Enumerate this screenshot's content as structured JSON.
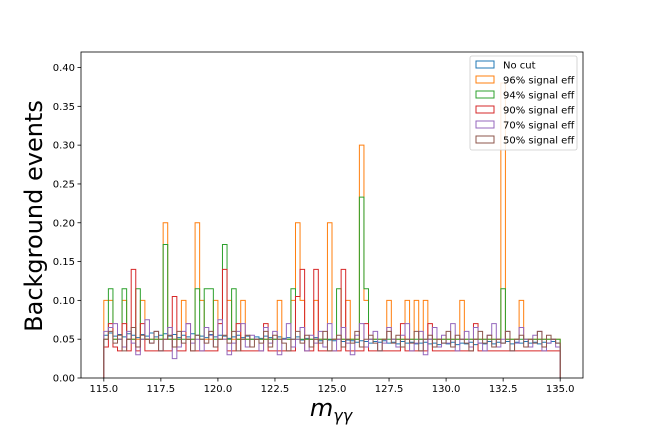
{
  "chart_data": {
    "type": "histogram",
    "xlabel": "mγγ",
    "xlabel_main": "m",
    "xlabel_sub": "γγ",
    "ylabel": "Background events",
    "xlim": [
      114.0,
      136.0
    ],
    "ylim": [
      0.0,
      0.42
    ],
    "xticks": [
      115.0,
      117.5,
      120.0,
      122.5,
      125.0,
      127.5,
      130.0,
      132.5,
      135.0
    ],
    "xtick_labels": [
      "115.0",
      "117.5",
      "120.0",
      "122.5",
      "125.0",
      "127.5",
      "130.0",
      "132.5",
      "135.0"
    ],
    "yticks": [
      0.0,
      0.05,
      0.1,
      0.15,
      0.2,
      0.25,
      0.3,
      0.35,
      0.4
    ],
    "ytick_labels": [
      "0.00",
      "0.05",
      "0.10",
      "0.15",
      "0.20",
      "0.25",
      "0.30",
      "0.35",
      "0.40"
    ],
    "bins": {
      "start": 115.0,
      "end": 135.0,
      "count": 100,
      "width": 0.2
    },
    "grid": false,
    "legend_position": "top-right",
    "series": [
      {
        "name": "No cut",
        "color": "#1f77b4",
        "values": [
          0.055,
          0.058,
          0.054,
          0.056,
          0.053,
          0.057,
          0.055,
          0.052,
          0.056,
          0.054,
          0.058,
          0.053,
          0.055,
          0.057,
          0.054,
          0.056,
          0.052,
          0.055,
          0.053,
          0.057,
          0.055,
          0.054,
          0.052,
          0.056,
          0.053,
          0.055,
          0.054,
          0.051,
          0.053,
          0.055,
          0.052,
          0.054,
          0.05,
          0.053,
          0.051,
          0.054,
          0.052,
          0.05,
          0.053,
          0.051,
          0.052,
          0.05,
          0.053,
          0.049,
          0.051,
          0.05,
          0.052,
          0.048,
          0.05,
          0.049,
          0.048,
          0.05,
          0.047,
          0.049,
          0.048,
          0.046,
          0.048,
          0.047,
          0.045,
          0.047,
          0.046,
          0.048,
          0.045,
          0.046,
          0.044,
          0.047,
          0.045,
          0.046,
          0.044,
          0.045,
          0.046,
          0.044,
          0.045,
          0.043,
          0.045,
          0.044,
          0.046,
          0.043,
          0.045,
          0.044,
          0.046,
          0.043,
          0.045,
          0.044,
          0.047,
          0.044,
          0.046,
          0.045,
          0.047,
          0.044,
          0.046,
          0.045,
          0.047,
          0.045,
          0.046,
          0.044,
          0.046,
          0.045,
          0.047,
          0.045
        ]
      },
      {
        "name": "96% signal eff",
        "color": "#ff7f0e",
        "values": [
          0.1,
          0.1,
          0.05,
          0.05,
          0.1,
          0.05,
          0.05,
          0.05,
          0.1,
          0.05,
          0.05,
          0.05,
          0.05,
          0.2,
          0.05,
          0.05,
          0.05,
          0.1,
          0.05,
          0.05,
          0.2,
          0.1,
          0.05,
          0.05,
          0.1,
          0.05,
          0.05,
          0.1,
          0.05,
          0.05,
          0.1,
          0.05,
          0.05,
          0.05,
          0.05,
          0.05,
          0.05,
          0.05,
          0.1,
          0.05,
          0.05,
          0.1,
          0.2,
          0.1,
          0.05,
          0.05,
          0.1,
          0.05,
          0.05,
          0.2,
          0.05,
          0.05,
          0.05,
          0.1,
          0.05,
          0.05,
          0.3,
          0.1,
          0.05,
          0.05,
          0.05,
          0.05,
          0.1,
          0.05,
          0.05,
          0.05,
          0.1,
          0.05,
          0.1,
          0.05,
          0.1,
          0.05,
          0.05,
          0.05,
          0.05,
          0.05,
          0.05,
          0.05,
          0.1,
          0.05,
          0.05,
          0.05,
          0.05,
          0.05,
          0.05,
          0.05,
          0.05,
          0.38,
          0.05,
          0.05,
          0.05,
          0.1,
          0.05,
          0.05,
          0.05,
          0.05,
          0.05,
          0.05,
          0.05,
          0.05
        ]
      },
      {
        "name": "94% signal eff",
        "color": "#2ca02c",
        "values": [
          0.05,
          0.115,
          0.05,
          0.05,
          0.115,
          0.05,
          0.05,
          0.115,
          0.05,
          0.05,
          0.05,
          0.05,
          0.05,
          0.172,
          0.05,
          0.05,
          0.05,
          0.05,
          0.05,
          0.05,
          0.115,
          0.05,
          0.115,
          0.115,
          0.05,
          0.05,
          0.172,
          0.05,
          0.115,
          0.05,
          0.05,
          0.05,
          0.05,
          0.05,
          0.05,
          0.05,
          0.05,
          0.05,
          0.05,
          0.05,
          0.05,
          0.115,
          0.05,
          0.05,
          0.05,
          0.05,
          0.05,
          0.05,
          0.05,
          0.05,
          0.05,
          0.115,
          0.05,
          0.05,
          0.05,
          0.05,
          0.233,
          0.115,
          0.05,
          0.05,
          0.05,
          0.05,
          0.05,
          0.05,
          0.05,
          0.05,
          0.05,
          0.05,
          0.05,
          0.05,
          0.05,
          0.05,
          0.05,
          0.05,
          0.05,
          0.05,
          0.05,
          0.05,
          0.05,
          0.05,
          0.05,
          0.05,
          0.05,
          0.05,
          0.05,
          0.05,
          0.05,
          0.115,
          0.05,
          0.05,
          0.05,
          0.05,
          0.05,
          0.05,
          0.05,
          0.05,
          0.05,
          0.05,
          0.05,
          0.05
        ]
      },
      {
        "name": "90% signal eff",
        "color": "#d62728",
        "values": [
          0.04,
          0.07,
          0.04,
          0.035,
          0.07,
          0.035,
          0.14,
          0.035,
          0.07,
          0.035,
          0.035,
          0.035,
          0.035,
          0.035,
          0.035,
          0.105,
          0.035,
          0.035,
          0.07,
          0.035,
          0.035,
          0.035,
          0.035,
          0.035,
          0.035,
          0.07,
          0.14,
          0.035,
          0.035,
          0.07,
          0.035,
          0.035,
          0.035,
          0.035,
          0.035,
          0.07,
          0.035,
          0.035,
          0.035,
          0.035,
          0.035,
          0.035,
          0.105,
          0.14,
          0.035,
          0.035,
          0.14,
          0.035,
          0.035,
          0.035,
          0.035,
          0.035,
          0.14,
          0.035,
          0.035,
          0.035,
          0.035,
          0.07,
          0.035,
          0.035,
          0.035,
          0.035,
          0.035,
          0.035,
          0.035,
          0.07,
          0.035,
          0.035,
          0.035,
          0.035,
          0.035,
          0.07,
          0.035,
          0.035,
          0.035,
          0.035,
          0.035,
          0.035,
          0.035,
          0.035,
          0.035,
          0.07,
          0.035,
          0.035,
          0.035,
          0.035,
          0.035,
          0.035,
          0.035,
          0.035,
          0.035,
          0.035,
          0.035,
          0.035,
          0.035,
          0.035,
          0.035,
          0.035,
          0.035,
          0.035
        ]
      },
      {
        "name": "70% signal eff",
        "color": "#9467bd",
        "values": [
          0.06,
          0.065,
          0.07,
          0.05,
          0.04,
          0.06,
          0.045,
          0.03,
          0.05,
          0.075,
          0.045,
          0.06,
          0.035,
          0.05,
          0.065,
          0.025,
          0.04,
          0.06,
          0.07,
          0.045,
          0.05,
          0.035,
          0.065,
          0.055,
          0.04,
          0.075,
          0.05,
          0.03,
          0.045,
          0.06,
          0.07,
          0.04,
          0.055,
          0.05,
          0.035,
          0.065,
          0.045,
          0.06,
          0.03,
          0.05,
          0.07,
          0.04,
          0.05,
          0.065,
          0.035,
          0.055,
          0.045,
          0.06,
          0.04,
          0.07,
          0.035,
          0.05,
          0.065,
          0.045,
          0.03,
          0.055,
          0.07,
          0.04,
          0.05,
          0.06,
          0.035,
          0.045,
          0.065,
          0.05,
          0.04,
          0.055,
          0.07,
          0.035,
          0.045,
          0.06,
          0.03,
          0.05,
          0.065,
          0.04,
          0.055,
          0.045,
          0.07,
          0.035,
          0.05,
          0.06,
          0.04,
          0.065,
          0.045,
          0.035,
          0.055,
          0.07,
          0.04,
          0.05,
          0.06,
          0.035,
          0.045,
          0.065,
          0.05,
          0.04,
          0.055,
          0.06,
          0.035,
          0.045,
          0.05,
          0.04
        ]
      },
      {
        "name": "50% signal eff",
        "color": "#8c564b",
        "values": [
          0.05,
          0.06,
          0.045,
          0.055,
          0.035,
          0.05,
          0.065,
          0.04,
          0.055,
          0.05,
          0.045,
          0.06,
          0.035,
          0.05,
          0.055,
          0.04,
          0.06,
          0.045,
          0.05,
          0.035,
          0.055,
          0.05,
          0.045,
          0.06,
          0.04,
          0.05,
          0.055,
          0.045,
          0.06,
          0.035,
          0.05,
          0.055,
          0.04,
          0.05,
          0.045,
          0.06,
          0.04,
          0.055,
          0.05,
          0.045,
          0.035,
          0.05,
          0.06,
          0.045,
          0.055,
          0.04,
          0.05,
          0.045,
          0.06,
          0.035,
          0.05,
          0.055,
          0.04,
          0.05,
          0.045,
          0.06,
          0.04,
          0.05,
          0.055,
          0.045,
          0.035,
          0.05,
          0.06,
          0.045,
          0.055,
          0.04,
          0.05,
          0.045,
          0.06,
          0.035,
          0.05,
          0.055,
          0.04,
          0.05,
          0.045,
          0.06,
          0.04,
          0.055,
          0.05,
          0.045,
          0.035,
          0.05,
          0.06,
          0.045,
          0.055,
          0.04,
          0.05,
          0.045,
          0.06,
          0.035,
          0.05,
          0.055,
          0.04,
          0.05,
          0.045,
          0.06,
          0.04,
          0.055,
          0.05,
          0.045
        ]
      }
    ]
  }
}
